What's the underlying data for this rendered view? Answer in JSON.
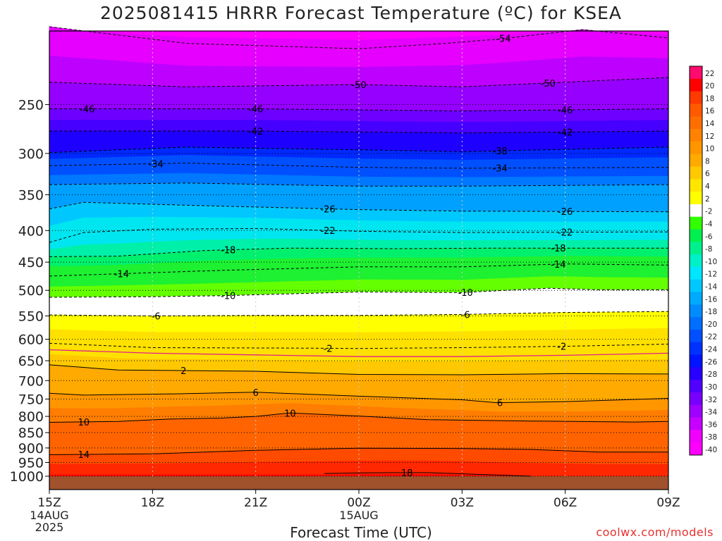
{
  "title": "2025081415 HRRR Forecast Temperature (ºC) for KSEA",
  "xlabel": "Forecast Time (UTC)",
  "credit": "coolwx.com/models",
  "chart_data": {
    "type": "contour",
    "title": "2025081415 HRRR Forecast Temperature (ºC) for KSEA",
    "xlabel": "Forecast Time (UTC)",
    "ylabel": "",
    "y_scale": "log-pressure",
    "y_ticks": [
      250,
      300,
      350,
      400,
      450,
      500,
      550,
      600,
      650,
      700,
      750,
      800,
      850,
      900,
      950,
      1000
    ],
    "x_ticks": [
      {
        "hour": 0,
        "label": "15Z",
        "sub": [
          "14AUG",
          "2025"
        ]
      },
      {
        "hour": 3,
        "label": "18Z",
        "sub": []
      },
      {
        "hour": 6,
        "label": "21Z",
        "sub": []
      },
      {
        "hour": 9,
        "label": "00Z",
        "sub": [
          "15AUG"
        ]
      },
      {
        "hour": 12,
        "label": "03Z",
        "sub": []
      },
      {
        "hour": 15,
        "label": "06Z",
        "sub": []
      },
      {
        "hour": 18,
        "label": "09Z",
        "sub": []
      }
    ],
    "colorbar_labels": [
      "22",
      "20",
      "18",
      "16",
      "14",
      "12",
      "10",
      "8",
      "6",
      "4",
      "2",
      "-2",
      "-4",
      "-6",
      "-8",
      "-10",
      "-12",
      "-14",
      "-16",
      "-18",
      "-20",
      "-22",
      "-24",
      "-26",
      "-28",
      "-30",
      "-32",
      "-34",
      "-36",
      "-38",
      "-40"
    ],
    "colorbar_colors": [
      "#ff0a6e",
      "#ff0000",
      "#ff3a00",
      "#ff5a00",
      "#ff6e00",
      "#ff8200",
      "#ff9600",
      "#ffaa00",
      "#ffc800",
      "#ffe600",
      "#ffff00",
      "#ffffff",
      "#32ff00",
      "#00f050",
      "#00f08c",
      "#00f0c8",
      "#00e6ff",
      "#00c8ff",
      "#00aaff",
      "#008cff",
      "#006eff",
      "#0050ff",
      "#0032ff",
      "#0014ff",
      "#2800ff",
      "#5000ff",
      "#7800ff",
      "#a000ff",
      "#c800ff",
      "#f000ff",
      "#ff00ff"
    ],
    "contours": [
      {
        "label": "-54",
        "pts": [
          [
            0,
            187
          ],
          [
            4,
            199
          ],
          [
            9,
            203
          ],
          [
            11.5,
            199
          ],
          [
            13,
            196
          ],
          [
            15.5,
            189
          ],
          [
            18,
            195
          ]
        ],
        "labels_at": [
          13.2
        ]
      },
      {
        "label": "-50",
        "pts": [
          [
            0,
            230
          ],
          [
            4,
            234
          ],
          [
            9,
            232
          ],
          [
            12,
            234
          ],
          [
            18,
            226
          ]
        ],
        "labels_at": [
          9,
          14.5
        ]
      },
      {
        "label": "-46",
        "pts": [
          [
            0,
            254
          ],
          [
            6,
            254
          ],
          [
            12,
            256
          ],
          [
            18,
            254
          ]
        ],
        "labels_at": [
          1.1,
          6,
          15.0
        ]
      },
      {
        "label": "-42",
        "pts": [
          [
            0,
            276
          ],
          [
            6,
            276
          ],
          [
            12,
            278
          ],
          [
            18,
            276
          ]
        ],
        "labels_at": [
          6,
          15.0
        ]
      },
      {
        "label": "-38",
        "pts": [
          [
            0,
            299
          ],
          [
            4,
            293
          ],
          [
            9,
            296
          ],
          [
            12,
            298
          ],
          [
            18,
            293
          ]
        ],
        "labels_at": [
          13.1
        ]
      },
      {
        "label": "-34",
        "pts": [
          [
            0,
            314
          ],
          [
            4,
            311
          ],
          [
            9,
            316
          ],
          [
            12,
            317
          ],
          [
            18,
            316
          ]
        ],
        "labels_at": [
          3.1,
          13.1
        ]
      },
      {
        "label": "-30",
        "pts": [
          [
            0,
            337
          ],
          [
            4,
            335
          ],
          [
            9,
            339
          ],
          [
            12,
            339
          ],
          [
            18,
            337
          ]
        ],
        "labels_at": []
      },
      {
        "label": "-26",
        "pts": [
          [
            0,
            369
          ],
          [
            1,
            360
          ],
          [
            4,
            364
          ],
          [
            9,
            370
          ],
          [
            12,
            372
          ],
          [
            18,
            373
          ]
        ],
        "labels_at": [
          8.1,
          15.0
        ]
      },
      {
        "label": "-22",
        "pts": [
          [
            0,
            418
          ],
          [
            1,
            403
          ],
          [
            3,
            398
          ],
          [
            6,
            397
          ],
          [
            9,
            401
          ],
          [
            12,
            403
          ],
          [
            18,
            402
          ]
        ],
        "labels_at": [
          8.1,
          15.0
        ]
      },
      {
        "label": "-18",
        "pts": [
          [
            0,
            441
          ],
          [
            2,
            440
          ],
          [
            4.5,
            431
          ],
          [
            7,
            427
          ],
          [
            10,
            428
          ],
          [
            13,
            427
          ],
          [
            18,
            427
          ]
        ],
        "labels_at": [
          5.2,
          14.8
        ]
      },
      {
        "label": "-14",
        "pts": [
          [
            0,
            474
          ],
          [
            1.5,
            471
          ],
          [
            5,
            464
          ],
          [
            9,
            458
          ],
          [
            12,
            458
          ],
          [
            15,
            453
          ],
          [
            18,
            455
          ]
        ],
        "labels_at": [
          2.1,
          14.8
        ]
      },
      {
        "label": "-10",
        "pts": [
          [
            0,
            513
          ],
          [
            3,
            512
          ],
          [
            5,
            510
          ],
          [
            9,
            503
          ],
          [
            12,
            504
          ],
          [
            14.5,
            496
          ],
          [
            16,
            499
          ],
          [
            18,
            499
          ]
        ],
        "labels_at": [
          5.2,
          12.1
        ]
      },
      {
        "label": "-6",
        "pts": [
          [
            0,
            548
          ],
          [
            3,
            550
          ],
          [
            6,
            549
          ],
          [
            9,
            549
          ],
          [
            12,
            547
          ],
          [
            15,
            543
          ],
          [
            18,
            541
          ]
        ],
        "labels_at": [
          3.1,
          12.1
        ]
      },
      {
        "label": "-2",
        "pts": [
          [
            0,
            609
          ],
          [
            3,
            619
          ],
          [
            7,
            620
          ],
          [
            9,
            621
          ],
          [
            12,
            619
          ],
          [
            15,
            616
          ],
          [
            18,
            611
          ]
        ],
        "labels_at": [
          8.1,
          14.9
        ]
      },
      {
        "label": "2",
        "pts": [
          [
            0,
            660
          ],
          [
            2,
            673
          ],
          [
            6,
            676
          ],
          [
            9,
            684
          ],
          [
            12,
            685
          ],
          [
            15,
            682
          ],
          [
            18,
            683
          ]
        ],
        "labels_at": [
          3.9
        ]
      },
      {
        "label": "6",
        "pts": [
          [
            0,
            734
          ],
          [
            1,
            739
          ],
          [
            4,
            735
          ],
          [
            6,
            731
          ],
          [
            9,
            742
          ],
          [
            12,
            752
          ],
          [
            13,
            760
          ],
          [
            15,
            757
          ],
          [
            18,
            748
          ]
        ],
        "labels_at": [
          6.0,
          13.1
        ]
      },
      {
        "label": "10",
        "pts": [
          [
            0,
            818
          ],
          [
            2,
            815
          ],
          [
            3.5,
            808
          ],
          [
            5,
            805
          ],
          [
            6,
            800
          ],
          [
            7,
            790
          ],
          [
            9,
            799
          ],
          [
            11,
            810
          ],
          [
            14,
            814
          ],
          [
            17,
            817
          ],
          [
            18,
            815
          ]
        ],
        "labels_at": [
          1.0,
          7.0
        ]
      },
      {
        "label": "14",
        "pts": [
          [
            0,
            923
          ],
          [
            3,
            920
          ],
          [
            6,
            908
          ],
          [
            9,
            901
          ],
          [
            12,
            902
          ],
          [
            14,
            905
          ],
          [
            16,
            914
          ],
          [
            18,
            914
          ]
        ],
        "labels_at": [
          1.0
        ]
      },
      {
        "label": "18",
        "pts": [
          [
            8,
            990
          ],
          [
            9,
            988
          ],
          [
            10,
            987
          ],
          [
            11,
            987
          ],
          [
            12,
            991
          ],
          [
            14,
            1000
          ]
        ],
        "labels_at": [
          10.4
        ]
      }
    ]
  }
}
